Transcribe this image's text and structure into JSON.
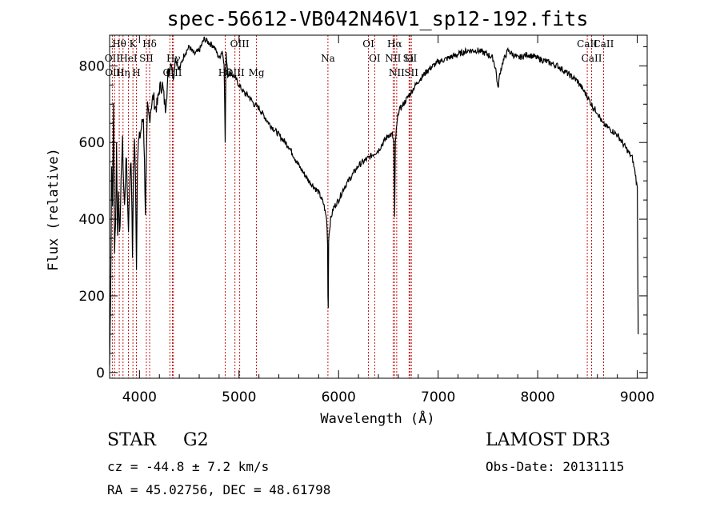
{
  "chart_data": {
    "type": "line",
    "title": "spec-56612-VB042N46V1_sp12-192.fits",
    "xlabel": "Wavelength (Å)",
    "ylabel": "Flux (relative)",
    "xlim": [
      3700,
      9100
    ],
    "ylim": [
      -15,
      880
    ],
    "xticks": [
      4000,
      5000,
      6000,
      7000,
      8000,
      9000
    ],
    "yticks": [
      0,
      200,
      400,
      600,
      800
    ],
    "series": [
      {
        "name": "spectrum",
        "x": [
          3700,
          3710,
          3720,
          3730,
          3740,
          3750,
          3760,
          3770,
          3780,
          3790,
          3800,
          3810,
          3820,
          3830,
          3840,
          3850,
          3860,
          3870,
          3880,
          3890,
          3900,
          3910,
          3920,
          3930,
          3940,
          3950,
          3960,
          3970,
          3980,
          3990,
          4000,
          4020,
          4040,
          4060,
          4080,
          4100,
          4120,
          4140,
          4160,
          4180,
          4200,
          4230,
          4260,
          4290,
          4320,
          4340,
          4360,
          4400,
          4450,
          4500,
          4550,
          4600,
          4650,
          4700,
          4750,
          4800,
          4830,
          4850,
          4861,
          4870,
          4890,
          4920,
          4960,
          5000,
          5050,
          5100,
          5150,
          5200,
          5300,
          5400,
          5500,
          5600,
          5700,
          5800,
          5850,
          5880,
          5890,
          5893,
          5896,
          5900,
          5920,
          5950,
          6000,
          6050,
          6100,
          6200,
          6300,
          6400,
          6450,
          6500,
          6540,
          6555,
          6563,
          6570,
          6580,
          6600,
          6650,
          6700,
          6800,
          6900,
          7000,
          7100,
          7200,
          7300,
          7400,
          7500,
          7550,
          7580,
          7600,
          7620,
          7650,
          7700,
          7800,
          7900,
          8000,
          8100,
          8200,
          8300,
          8400,
          8500,
          8540,
          8560,
          8600,
          8650,
          8700,
          8750,
          8800,
          8850,
          8900,
          8950,
          8980,
          9000,
          9010
        ],
        "values": [
          20,
          200,
          540,
          450,
          700,
          320,
          380,
          600,
          350,
          470,
          380,
          420,
          550,
          600,
          500,
          430,
          520,
          560,
          450,
          380,
          470,
          560,
          500,
          300,
          520,
          600,
          520,
          270,
          560,
          600,
          610,
          640,
          670,
          420,
          690,
          660,
          700,
          720,
          690,
          700,
          740,
          750,
          690,
          780,
          810,
          760,
          820,
          790,
          830,
          850,
          830,
          840,
          870,
          860,
          850,
          820,
          840,
          810,
          600,
          830,
          780,
          780,
          770,
          750,
          730,
          720,
          700,
          690,
          650,
          620,
          590,
          540,
          500,
          470,
          440,
          400,
          340,
          200,
          170,
          350,
          400,
          430,
          450,
          480,
          500,
          540,
          560,
          580,
          600,
          620,
          620,
          600,
          400,
          600,
          630,
          680,
          700,
          720,
          760,
          790,
          810,
          820,
          830,
          840,
          840,
          830,
          820,
          790,
          740,
          780,
          810,
          840,
          820,
          830,
          820,
          810,
          800,
          780,
          760,
          720,
          700,
          690,
          680,
          650,
          640,
          630,
          620,
          600,
          580,
          560,
          520,
          480,
          100
        ]
      }
    ],
    "lines": [
      {
        "label": "Hθ",
        "wavelength": 3797
      },
      {
        "label": "OII",
        "wavelength": 3727
      },
      {
        "label": "OIII",
        "wavelength": 3750
      },
      {
        "label": "Hη",
        "wavelength": 3835
      },
      {
        "label": "HeI",
        "wavelength": 3889
      },
      {
        "label": "K",
        "wavelength": 3934
      },
      {
        "label": "H",
        "wavelength": 3969
      },
      {
        "label": "SII",
        "wavelength": 4069
      },
      {
        "label": "Hδ",
        "wavelength": 4102
      },
      {
        "label": "OIII",
        "wavelength": 4331
      },
      {
        "label": "Hγ",
        "wavelength": 4341
      },
      {
        "label": "G",
        "wavelength": 4305
      },
      {
        "label": "Hβ",
        "wavelength": 4861
      },
      {
        "label": "OIII",
        "wavelength": 4959
      },
      {
        "label": "OIII",
        "wavelength": 5007
      },
      {
        "label": "Mg",
        "wavelength": 5175
      },
      {
        "label": "Na",
        "wavelength": 5893
      },
      {
        "label": "OI",
        "wavelength": 6300
      },
      {
        "label": "OI",
        "wavelength": 6363
      },
      {
        "label": "NII",
        "wavelength": 6548
      },
      {
        "label": "Hα",
        "wavelength": 6563
      },
      {
        "label": "NII",
        "wavelength": 6584
      },
      {
        "label": "SII",
        "wavelength": 6717
      },
      {
        "label": "Li",
        "wavelength": 6708
      },
      {
        "label": "SII",
        "wavelength": 6731
      },
      {
        "label": "CaII",
        "wavelength": 8498
      },
      {
        "label": "CaII",
        "wavelength": 8542
      },
      {
        "label": "CaII",
        "wavelength": 8662
      }
    ]
  },
  "info": {
    "class": "STAR",
    "subclass": "G2",
    "survey": "LAMOST DR3",
    "cz": "cz = -44.8 ± 7.2 km/s",
    "obs_date": "Obs-Date: 20131115",
    "coords": "RA =  45.02756, DEC =  48.61798"
  },
  "colors": {
    "line_marker": "#c00000",
    "spectrum": "#000000",
    "axis": "#000000"
  }
}
